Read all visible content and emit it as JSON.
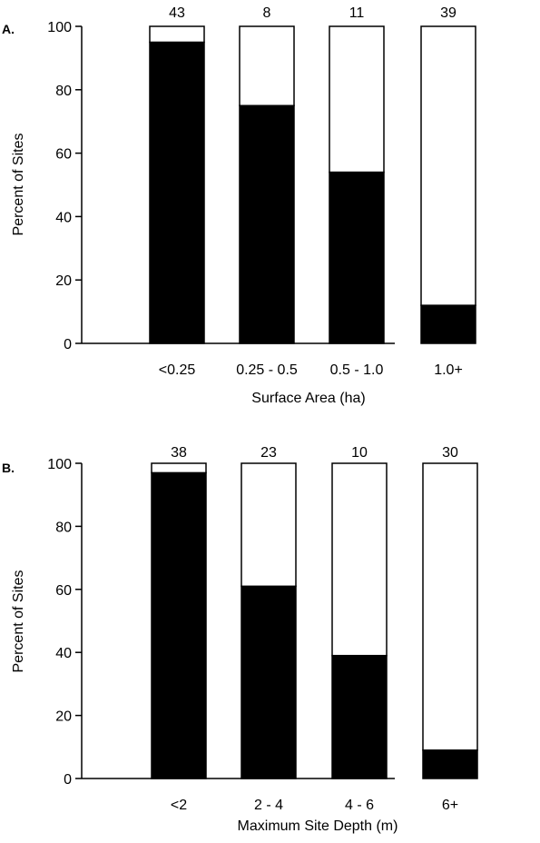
{
  "colors": {
    "filled": "#000000",
    "empty": "#ffffff",
    "outline": "#000000"
  },
  "chart_data": [
    {
      "type": "bar",
      "stacked": true,
      "panel_label": "A.",
      "categories": [
        "<0.25",
        "0.25 - 0.5",
        "0.5 - 1.0",
        "1.0+"
      ],
      "bar_labels": [
        "43",
        "8",
        "11",
        "39"
      ],
      "series": [
        {
          "values": [
            95,
            75,
            54,
            12
          ]
        },
        {
          "values": [
            5,
            25,
            46,
            88
          ]
        }
      ],
      "yticks": [
        "0",
        "20",
        "40",
        "60",
        "80",
        "100"
      ],
      "ylim": [
        0,
        100
      ],
      "xlabel": "Surface Area (ha)",
      "ylabel": "Percent of Sites"
    },
    {
      "type": "bar",
      "stacked": true,
      "panel_label": "B.",
      "categories": [
        "<2",
        "2 - 4",
        "4 - 6",
        "6+"
      ],
      "bar_labels": [
        "38",
        "23",
        "10",
        "30"
      ],
      "series": [
        {
          "values": [
            97,
            61,
            39,
            9
          ]
        },
        {
          "values": [
            3,
            39,
            61,
            91
          ]
        }
      ],
      "yticks": [
        "0",
        "20",
        "40",
        "60",
        "80",
        "100"
      ],
      "ylim": [
        0,
        100
      ],
      "xlabel": "Maximum Site Depth (m)",
      "ylabel": "Percent of Sites"
    }
  ]
}
